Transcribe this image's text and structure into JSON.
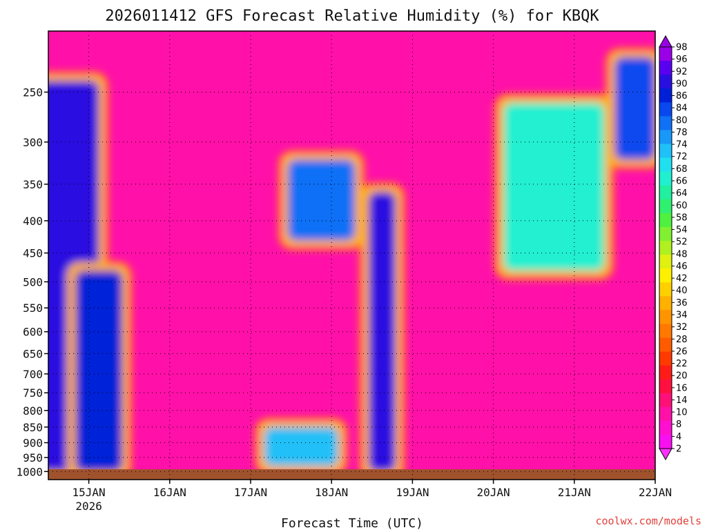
{
  "chart_data": {
    "type": "heatmap",
    "title": "2026011412 GFS Forecast Relative Humidity (%) for KBQK",
    "xlabel": "Forecast Time (UTC)",
    "ylabel": "",
    "x_ticks": [
      "15JAN",
      "16JAN",
      "17JAN",
      "18JAN",
      "19JAN",
      "20JAN",
      "21JAN",
      "22JAN"
    ],
    "x_year_label": "2026",
    "x_range": [
      "2026-01-14T12:00Z",
      "2026-01-22T00:00Z"
    ],
    "y_ticks": [
      250,
      300,
      350,
      400,
      450,
      500,
      550,
      600,
      650,
      700,
      750,
      800,
      850,
      900,
      950,
      1000
    ],
    "y_range": [
      1030,
      200
    ],
    "y_scale": "log",
    "grid": true,
    "colorbar": {
      "labels": [
        98,
        96,
        92,
        90,
        86,
        84,
        80,
        78,
        74,
        72,
        68,
        66,
        64,
        60,
        58,
        54,
        52,
        48,
        46,
        42,
        40,
        36,
        34,
        32,
        28,
        26,
        22,
        20,
        16,
        14,
        10,
        8,
        4,
        2
      ],
      "colors": [
        "#9a00e8",
        "#5a00f0",
        "#2a10e0",
        "#0020d8",
        "#0848ee",
        "#1070f6",
        "#1898f8",
        "#20c0f8",
        "#20e0f0",
        "#20f0d0",
        "#20f0a0",
        "#30f070",
        "#50f040",
        "#80f030",
        "#b0f020",
        "#e0f010",
        "#fff000",
        "#ffd000",
        "#ffb000",
        "#ff9400",
        "#ff7800",
        "#ff5c00",
        "#ff3a00",
        "#ff1c18",
        "#ff1040",
        "#ff1078",
        "#ff10a8",
        "#ff10d0",
        "#f810f0"
      ],
      "placement": "right"
    },
    "fields": [
      {
        "name": "humid-band",
        "time": "2026-01-14T18:00Z",
        "p_top": 240,
        "p_bottom": 1000,
        "width_h": 18,
        "rh": 92
      },
      {
        "name": "humid-band",
        "time": "2026-01-15T03:00Z",
        "p_top": 480,
        "p_bottom": 1000,
        "width_h": 14,
        "rh": 88
      },
      {
        "name": "humid-band",
        "time": "2026-01-17T21:00Z",
        "p_top": 320,
        "p_bottom": 430,
        "width_h": 20,
        "rh": 82
      },
      {
        "name": "humid-band",
        "time": "2026-01-17T15:00Z",
        "p_top": 850,
        "p_bottom": 980,
        "width_h": 22,
        "rh": 78
      },
      {
        "name": "humid-band",
        "time": "2026-01-18T15:00Z",
        "p_top": 360,
        "p_bottom": 1000,
        "width_h": 8,
        "rh": 92
      },
      {
        "name": "humid-band",
        "time": "2026-01-20T18:00Z",
        "p_top": 260,
        "p_bottom": 480,
        "width_h": 30,
        "rh": 70
      },
      {
        "name": "humid-band",
        "time": "2026-01-21T18:00Z",
        "p_top": 220,
        "p_bottom": 320,
        "width_h": 12,
        "rh": 86
      }
    ],
    "surface_color": "#a0522d"
  },
  "credit": "coolwx.com/models"
}
